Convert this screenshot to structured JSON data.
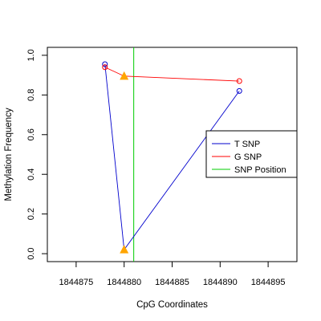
{
  "chart_data": {
    "type": "line",
    "title": "",
    "xlabel": "CpG Coordinates",
    "ylabel": "Methylation Frequency",
    "xlim": [
      1844872,
      1844898
    ],
    "ylim": [
      -0.04,
      1.04
    ],
    "x_ticks": [
      1844875,
      1844880,
      1844885,
      1844890,
      1844895
    ],
    "x_tick_labels": [
      "1844875",
      "1844880",
      "1844885",
      "1844890",
      "1844895"
    ],
    "y_ticks": [
      0.0,
      0.2,
      0.4,
      0.6,
      0.8,
      1.0
    ],
    "y_tick_labels": [
      "0.0",
      "0.2",
      "0.4",
      "0.6",
      "0.8",
      "1.0"
    ],
    "grid": false,
    "legend_position": "right",
    "series": [
      {
        "name": "T SNP",
        "color": "#0000CD",
        "marker": "circle",
        "points": [
          {
            "x": 1844878,
            "y": 0.955
          },
          {
            "x": 1844880,
            "y": 0.02
          },
          {
            "x": 1844892,
            "y": 0.82
          }
        ],
        "snp_point": {
          "x": 1844880,
          "y": 0.02
        }
      },
      {
        "name": "G SNP",
        "color": "#FF0000",
        "marker": "circle",
        "points": [
          {
            "x": 1844878,
            "y": 0.94
          },
          {
            "x": 1844880,
            "y": 0.895
          },
          {
            "x": 1844892,
            "y": 0.87
          }
        ],
        "snp_point": {
          "x": 1844880,
          "y": 0.895
        }
      }
    ],
    "snp_position": {
      "name": "SNP Position",
      "x": 1844881,
      "color": "#00CC00"
    },
    "snp_marker": {
      "shape": "triangle",
      "color": "#FFA500"
    },
    "legend": [
      {
        "label": "T SNP",
        "color": "#0000CD"
      },
      {
        "label": "G SNP",
        "color": "#FF0000"
      },
      {
        "label": "SNP Position",
        "color": "#00CC00"
      }
    ]
  }
}
